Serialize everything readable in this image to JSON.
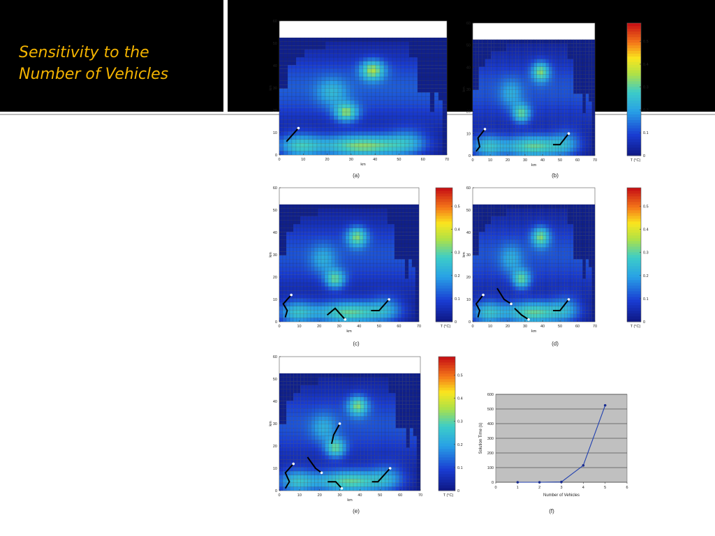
{
  "slide": {
    "title_line1": "Sensitivity to the",
    "title_line2": "Number of Vehicles"
  },
  "colorbar": {
    "title": "T (°C)",
    "ticks": [
      "0",
      "0.1",
      "0.2",
      "0.3",
      "0.4",
      "0.5"
    ],
    "max": 0.58
  },
  "heatmap_axes": {
    "xlabel": "km",
    "ylabel": "km",
    "xticks": [
      0,
      10,
      20,
      30,
      40,
      50,
      60,
      70
    ],
    "yticks": [
      0,
      10,
      20,
      30,
      40,
      50,
      60
    ],
    "xlim": [
      0,
      70
    ],
    "ylim": [
      0,
      60
    ]
  },
  "panel_labels": [
    "(a)",
    "(b)",
    "(c)",
    "(d)",
    "(e)",
    "(f)"
  ],
  "chart_data": [
    {
      "type": "heatmap",
      "panel": "(a)",
      "vehicles": 1,
      "xlabel": "km",
      "ylabel": "km",
      "colorbar_label": "",
      "paths": [
        [
          [
            3,
            6
          ],
          [
            8,
            12
          ]
        ]
      ]
    },
    {
      "type": "heatmap",
      "panel": "(b)",
      "vehicles": 2,
      "xlabel": "km",
      "ylabel": "km",
      "colorbar_label": "T (°C)",
      "paths": [
        [
          [
            2,
            2
          ],
          [
            4,
            4
          ],
          [
            3,
            8
          ],
          [
            7,
            12
          ]
        ],
        [
          [
            46,
            5
          ],
          [
            50,
            5
          ],
          [
            55,
            10
          ]
        ]
      ]
    },
    {
      "type": "heatmap",
      "panel": "(c)",
      "vehicles": 3,
      "xlabel": "km",
      "ylabel": "km",
      "colorbar_label": "T (°C)",
      "paths": [
        [
          [
            3,
            2
          ],
          [
            4,
            5
          ],
          [
            2,
            8
          ],
          [
            6,
            12
          ]
        ],
        [
          [
            24,
            3
          ],
          [
            28,
            6
          ],
          [
            31,
            3
          ],
          [
            33,
            1
          ]
        ],
        [
          [
            46,
            5
          ],
          [
            50,
            5
          ],
          [
            55,
            10
          ]
        ]
      ]
    },
    {
      "type": "heatmap",
      "panel": "(d)",
      "vehicles": 4,
      "xlabel": "km",
      "ylabel": "km",
      "colorbar_label": "T (°C)",
      "paths": [
        [
          [
            3,
            2
          ],
          [
            4,
            5
          ],
          [
            2,
            8
          ],
          [
            6,
            12
          ]
        ],
        [
          [
            14,
            15
          ],
          [
            18,
            10
          ],
          [
            22,
            8
          ]
        ],
        [
          [
            24,
            6
          ],
          [
            28,
            3
          ],
          [
            32,
            1
          ]
        ],
        [
          [
            46,
            5
          ],
          [
            50,
            5
          ],
          [
            55,
            10
          ]
        ]
      ]
    },
    {
      "type": "heatmap",
      "panel": "(e)",
      "vehicles": 5,
      "xlabel": "km",
      "ylabel": "km",
      "colorbar_label": "T (°C)",
      "paths": [
        [
          [
            3,
            1
          ],
          [
            5,
            4
          ],
          [
            3,
            8
          ],
          [
            7,
            12
          ]
        ],
        [
          [
            14,
            15
          ],
          [
            18,
            10
          ],
          [
            21,
            8
          ]
        ],
        [
          [
            24,
            4
          ],
          [
            28,
            4
          ],
          [
            31,
            1
          ]
        ],
        [
          [
            26,
            21
          ],
          [
            27,
            25
          ],
          [
            30,
            30
          ]
        ],
        [
          [
            46,
            4
          ],
          [
            49,
            4
          ],
          [
            55,
            10
          ]
        ]
      ]
    },
    {
      "type": "line",
      "panel": "(f)",
      "title": "",
      "xlabel": "Number of Vehicles",
      "ylabel": "Solution Time (s)",
      "xlim": [
        0,
        6
      ],
      "ylim": [
        0,
        600
      ],
      "xticks": [
        0,
        1,
        2,
        3,
        4,
        5,
        6
      ],
      "yticks": [
        0,
        100,
        200,
        300,
        400,
        500,
        600
      ],
      "grid": true,
      "background": "#c0c0c0",
      "color": "#1f3fb0",
      "x": [
        1,
        2,
        3,
        4,
        5
      ],
      "y": [
        0,
        0,
        2,
        115,
        525
      ]
    }
  ]
}
